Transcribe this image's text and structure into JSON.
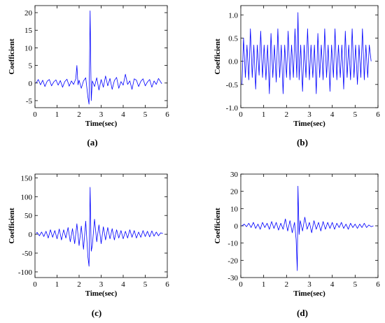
{
  "chart_data": [
    {
      "id": "a",
      "type": "line",
      "panel_label": "(a)",
      "xlabel": "Time(sec)",
      "ylabel": "Coefficient",
      "xlim": [
        0,
        6
      ],
      "ylim": [
        -7,
        22
      ],
      "xticks": [
        0,
        1,
        2,
        3,
        4,
        5,
        6
      ],
      "yticks": [
        -5,
        0,
        5,
        10,
        15,
        20
      ],
      "series": [
        {
          "color": "#0000ff",
          "x": [
            0.05,
            0.15,
            0.25,
            0.35,
            0.45,
            0.55,
            0.65,
            0.75,
            0.85,
            0.95,
            1.05,
            1.15,
            1.25,
            1.35,
            1.45,
            1.55,
            1.65,
            1.75,
            1.85,
            1.9,
            1.95,
            2.0,
            2.1,
            2.2,
            2.3,
            2.4,
            2.45,
            2.5,
            2.55,
            2.6,
            2.7,
            2.8,
            2.9,
            3.0,
            3.1,
            3.2,
            3.3,
            3.4,
            3.5,
            3.6,
            3.7,
            3.8,
            3.9,
            4.0,
            4.1,
            4.2,
            4.3,
            4.4,
            4.5,
            4.6,
            4.7,
            4.8,
            4.9,
            5.0,
            5.1,
            5.2,
            5.3,
            5.4,
            5.5,
            5.6,
            5.75
          ],
          "y": [
            0,
            1,
            -0.5,
            0.8,
            -1,
            0.5,
            1,
            -0.8,
            0.3,
            0.9,
            -0.6,
            0.7,
            -1.2,
            0.4,
            1.1,
            -0.9,
            0.6,
            -0.4,
            1.2,
            5,
            -0.5,
            0.8,
            -1.5,
            0.6,
            1.5,
            -4,
            -6,
            20.5,
            -5,
            0.6,
            -1,
            1.5,
            -2,
            1,
            -1.2,
            2,
            -0.8,
            1.3,
            -1.8,
            0.7,
            1.6,
            -1.5,
            0.4,
            -0.6,
            2.5,
            -0.4,
            0.6,
            -1.8,
            1.2,
            0.8,
            -1,
            0.5,
            1.2,
            -0.8,
            0.3,
            1,
            -1.2,
            0.6,
            -0.4,
            1.3,
            -0.2
          ]
        }
      ]
    },
    {
      "id": "b",
      "type": "line",
      "panel_label": "(b)",
      "xlabel": "Time(sec)",
      "ylabel": "Coefficient",
      "xlim": [
        0,
        6
      ],
      "ylim": [
        -1.0,
        1.2
      ],
      "xticks": [
        0,
        1,
        2,
        3,
        4,
        5,
        6
      ],
      "yticks": [
        -1.0,
        -0.5,
        0.0,
        0.5,
        1.0
      ],
      "series": [
        {
          "color": "#0000ff",
          "x": [
            0.05,
            0.12,
            0.2,
            0.27,
            0.35,
            0.42,
            0.5,
            0.57,
            0.65,
            0.72,
            0.8,
            0.87,
            0.95,
            1.02,
            1.1,
            1.17,
            1.25,
            1.32,
            1.4,
            1.47,
            1.55,
            1.62,
            1.7,
            1.77,
            1.85,
            1.92,
            2.0,
            2.07,
            2.15,
            2.22,
            2.3,
            2.37,
            2.45,
            2.5,
            2.55,
            2.62,
            2.7,
            2.77,
            2.85,
            2.92,
            3.0,
            3.07,
            3.15,
            3.22,
            3.3,
            3.37,
            3.45,
            3.52,
            3.6,
            3.67,
            3.75,
            3.82,
            3.9,
            3.97,
            4.05,
            4.12,
            4.2,
            4.27,
            4.35,
            4.42,
            4.5,
            4.57,
            4.65,
            4.72,
            4.8,
            4.87,
            4.95,
            5.02,
            5.1,
            5.17,
            5.25,
            5.32,
            5.4,
            5.47,
            5.55,
            5.62,
            5.7
          ],
          "y": [
            -0.5,
            0.5,
            -0.35,
            0.35,
            -0.4,
            0.7,
            -0.35,
            0.35,
            -0.6,
            0.35,
            -0.3,
            0.65,
            -0.35,
            0.35,
            -0.4,
            0.35,
            -0.7,
            0.6,
            -0.35,
            0.35,
            -0.45,
            0.7,
            -0.35,
            0.35,
            -0.7,
            0.35,
            -0.35,
            0.65,
            -0.4,
            0.35,
            -0.35,
            0.7,
            -0.35,
            1.05,
            -0.4,
            0.35,
            -0.65,
            0.35,
            -0.35,
            0.7,
            -0.4,
            0.35,
            -0.35,
            0.35,
            -0.7,
            0.6,
            -0.35,
            0.35,
            -0.4,
            0.7,
            -0.35,
            0.35,
            -0.65,
            0.35,
            -0.35,
            0.7,
            -0.4,
            0.35,
            -0.35,
            0.35,
            -0.6,
            0.65,
            -0.35,
            0.35,
            -0.4,
            0.7,
            -0.35,
            0.35,
            -0.5,
            0.35,
            -0.35,
            0.7,
            -0.4,
            0.35,
            -0.35,
            0.35,
            0.0
          ]
        }
      ]
    },
    {
      "id": "c",
      "type": "line",
      "panel_label": "(c)",
      "xlabel": "Time(sec)",
      "ylabel": "Coefficient",
      "xlim": [
        0,
        6
      ],
      "ylim": [
        -115,
        160
      ],
      "xticks": [
        0,
        1,
        2,
        3,
        4,
        5,
        6
      ],
      "yticks": [
        -100,
        -50,
        0,
        50,
        100,
        150
      ],
      "series": [
        {
          "color": "#0000ff",
          "x": [
            0.05,
            0.1,
            0.2,
            0.3,
            0.4,
            0.5,
            0.6,
            0.7,
            0.8,
            0.9,
            1.0,
            1.1,
            1.2,
            1.3,
            1.4,
            1.5,
            1.6,
            1.7,
            1.8,
            1.9,
            2.0,
            2.1,
            2.2,
            2.3,
            2.4,
            2.45,
            2.5,
            2.55,
            2.6,
            2.7,
            2.8,
            2.9,
            3.0,
            3.1,
            3.2,
            3.3,
            3.4,
            3.5,
            3.6,
            3.7,
            3.8,
            3.9,
            4.0,
            4.1,
            4.2,
            4.3,
            4.4,
            4.5,
            4.6,
            4.7,
            4.8,
            4.9,
            5.0,
            5.1,
            5.2,
            5.3,
            5.4,
            5.5,
            5.6,
            5.7,
            5.8
          ],
          "y": [
            2,
            5,
            -4,
            6,
            -6,
            8,
            -10,
            12,
            -8,
            10,
            -12,
            14,
            -15,
            12,
            -10,
            18,
            -20,
            15,
            -25,
            28,
            -30,
            22,
            -40,
            35,
            -60,
            -85,
            125,
            -45,
            -30,
            40,
            -20,
            25,
            -25,
            20,
            -15,
            18,
            -12,
            15,
            -15,
            12,
            -10,
            10,
            -12,
            8,
            -10,
            12,
            -8,
            10,
            -10,
            6,
            -8,
            10,
            -6,
            8,
            -7,
            9,
            -5,
            6,
            -4,
            4,
            2
          ]
        }
      ]
    },
    {
      "id": "d",
      "type": "line",
      "panel_label": "(d)",
      "xlabel": "Time(sec)",
      "ylabel": "Coefficient",
      "xlim": [
        0,
        6
      ],
      "ylim": [
        -30,
        30
      ],
      "xticks": [
        0,
        1,
        2,
        3,
        4,
        5,
        6
      ],
      "yticks": [
        -30,
        -20,
        -10,
        0,
        10,
        20,
        30
      ],
      "series": [
        {
          "color": "#0000ff",
          "x": [
            0.05,
            0.15,
            0.25,
            0.35,
            0.45,
            0.55,
            0.65,
            0.75,
            0.85,
            0.95,
            1.05,
            1.15,
            1.25,
            1.35,
            1.45,
            1.55,
            1.65,
            1.75,
            1.85,
            1.95,
            2.05,
            2.15,
            2.25,
            2.35,
            2.42,
            2.47,
            2.5,
            2.55,
            2.6,
            2.7,
            2.8,
            2.9,
            3.0,
            3.1,
            3.2,
            3.3,
            3.4,
            3.5,
            3.6,
            3.7,
            3.8,
            3.9,
            4.0,
            4.1,
            4.2,
            4.3,
            4.4,
            4.5,
            4.6,
            4.7,
            4.8,
            4.9,
            5.0,
            5.1,
            5.2,
            5.3,
            5.4,
            5.5,
            5.6,
            5.7,
            5.8
          ],
          "y": [
            0,
            1,
            -0.5,
            1.5,
            -1,
            2,
            -1.5,
            1,
            -2,
            2,
            -1,
            1.5,
            -2,
            2.5,
            -1.5,
            2,
            -2.5,
            1.5,
            -2,
            4,
            -3,
            3,
            -4,
            2,
            -8,
            -26,
            23,
            -5,
            3,
            -3,
            5,
            -2,
            2,
            -4,
            3,
            -2,
            2,
            -3,
            2.5,
            -2,
            2,
            -1.5,
            2,
            -2,
            1.5,
            -1,
            2,
            -1.5,
            1,
            -2,
            1.5,
            -1,
            1,
            -1.5,
            1,
            -1,
            1.5,
            -1,
            0.5,
            -0.5,
            0
          ]
        }
      ]
    }
  ]
}
